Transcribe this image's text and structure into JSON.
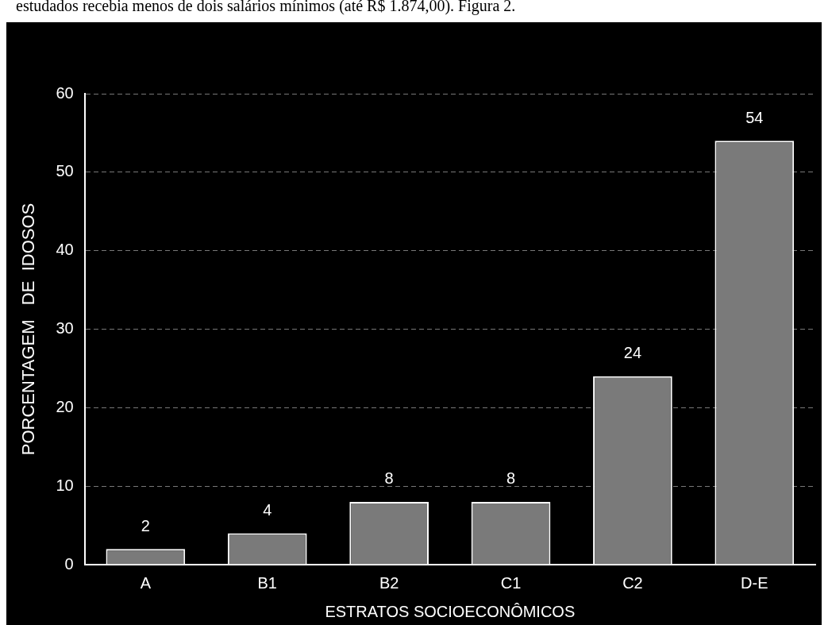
{
  "chart_data": {
    "type": "bar",
    "xlabel": "ESTRATOS SOCIOECONÔMICOS",
    "ylabel": "PORCENTAGEM   DE  IDOSOS",
    "annotations": [
      "estudados recebia menos de dois salários mínimos (até R$ 1.874,00). Figura 2."
    ],
    "categories": [
      "A",
      "B1",
      "B2",
      "C1",
      "C2",
      "D-E"
    ],
    "values": [
      2,
      4,
      8,
      8,
      24,
      54
    ],
    "color": "#7a7a7a",
    "ylim": [
      0,
      60
    ],
    "yticks": [
      0,
      10,
      20,
      30,
      40,
      50,
      60
    ],
    "grid": "y",
    "data_labels": true,
    "legend": false
  }
}
